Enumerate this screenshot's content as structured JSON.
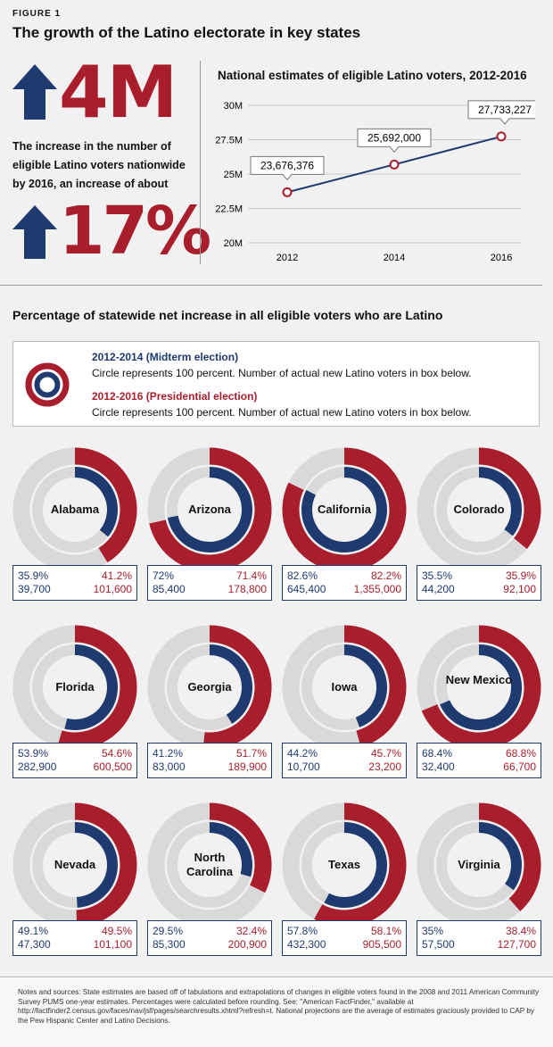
{
  "header": {
    "figure_label": "FIGURE 1",
    "title": "The growth of the Latino electorate in key states"
  },
  "stats": {
    "increase_count": "4M",
    "description": "The increase in the number of eligible Latino voters nationwide by 2016, an increase of about",
    "increase_pct": "17%"
  },
  "colors": {
    "blue": "#1f3a6e",
    "red": "#a91e2c",
    "track": "#d9d9d9"
  },
  "chart_data": [
    {
      "type": "line",
      "title": "National estimates of eligible Latino voters, 2012-2016",
      "x": [
        "2012",
        "2014",
        "2016"
      ],
      "values": [
        23676376,
        25692000,
        27733227
      ],
      "point_labels": [
        "23,676,376",
        "25,692,000",
        "27,733,227"
      ],
      "y_ticks": [
        "30M",
        "27.5M",
        "25M",
        "22.5M",
        "20M"
      ],
      "ylim": [
        20000000,
        30000000
      ]
    },
    {
      "type": "radial-bar",
      "title": "Percentage of statewide net increase in all eligible voters who are Latino",
      "series": [
        {
          "name": "2012-2014 (Midterm election)",
          "color": "#1f3a6e"
        },
        {
          "name": "2012-2016 (Presidential election)",
          "color": "#a91e2c"
        }
      ],
      "states": [
        {
          "name": "Alabama",
          "pct_2014": 35.9,
          "pct_2016": 41.2,
          "pct_2014_label": "35.9%",
          "pct_2016_label": "41.2%",
          "voters_2014": "39,700",
          "voters_2016": "101,600"
        },
        {
          "name": "Arizona",
          "pct_2014": 72,
          "pct_2016": 71.4,
          "pct_2014_label": "72%",
          "pct_2016_label": "71.4%",
          "voters_2014": "85,400",
          "voters_2016": "178,800"
        },
        {
          "name": "California",
          "pct_2014": 82.6,
          "pct_2016": 82.2,
          "pct_2014_label": "82.6%",
          "pct_2016_label": "82.2%",
          "voters_2014": "645,400",
          "voters_2016": "1,355,000"
        },
        {
          "name": "Colorado",
          "pct_2014": 35.5,
          "pct_2016": 35.9,
          "pct_2014_label": "35.5%",
          "pct_2016_label": "35.9%",
          "voters_2014": "44,200",
          "voters_2016": "92,100"
        },
        {
          "name": "Florida",
          "pct_2014": 53.9,
          "pct_2016": 54.6,
          "pct_2014_label": "53.9%",
          "pct_2016_label": "54.6%",
          "voters_2014": "282,900",
          "voters_2016": "600,500"
        },
        {
          "name": "Georgia",
          "pct_2014": 41.2,
          "pct_2016": 51.7,
          "pct_2014_label": "41.2%",
          "pct_2016_label": "51.7%",
          "voters_2014": "83,000",
          "voters_2016": "189,900"
        },
        {
          "name": "Iowa",
          "pct_2014": 44.2,
          "pct_2016": 45.7,
          "pct_2014_label": "44.2%",
          "pct_2016_label": "45.7%",
          "voters_2014": "10,700",
          "voters_2016": "23,200"
        },
        {
          "name": "New Mexico",
          "pct_2014": 68.4,
          "pct_2016": 68.8,
          "pct_2014_label": "68.4%",
          "pct_2016_label": "68.8%",
          "voters_2014": "32,400",
          "voters_2016": "66,700"
        },
        {
          "name": "Nevada",
          "pct_2014": 49.1,
          "pct_2016": 49.5,
          "pct_2014_label": "49.1%",
          "pct_2016_label": "49.5%",
          "voters_2014": "47,300",
          "voters_2016": "101,100"
        },
        {
          "name": "North Carolina",
          "pct_2014": 29.5,
          "pct_2016": 32.4,
          "pct_2014_label": "29.5%",
          "pct_2016_label": "32.4%",
          "voters_2014": "85,300",
          "voters_2016": "200,900"
        },
        {
          "name": "Texas",
          "pct_2014": 57.8,
          "pct_2016": 58.1,
          "pct_2014_label": "57.8%",
          "pct_2016_label": "58.1%",
          "voters_2014": "432,300",
          "voters_2016": "905,500"
        },
        {
          "name": "Virginia",
          "pct_2014": 35,
          "pct_2016": 38.4,
          "pct_2014_label": "35%",
          "pct_2016_label": "38.4%",
          "voters_2014": "57,500",
          "voters_2016": "127,700"
        }
      ]
    }
  ],
  "legend": {
    "midterm_label": "2012-2014 (Midterm election)",
    "presidential_label": "2012-2016 (Presidential election)",
    "desc": "Circle represents 100 percent. Number of actual new Latino voters in box below."
  },
  "notes": "Notes and sources: State estimates are based off of tabulations and extrapolations of changes in eligible voters found in the 2008 and 2011 American Community Survey PUMS one-year estimates. Percentages were calculated before rounding. See: \"American FactFinder,\" available at http://factfinder2.census.gov/faces/nav/jsf/pages/searchresults.xhtml?refresh=t. National projections are the average of estimates graciously provided to CAP by the Pew Hispanic Center and Latino Decisions."
}
